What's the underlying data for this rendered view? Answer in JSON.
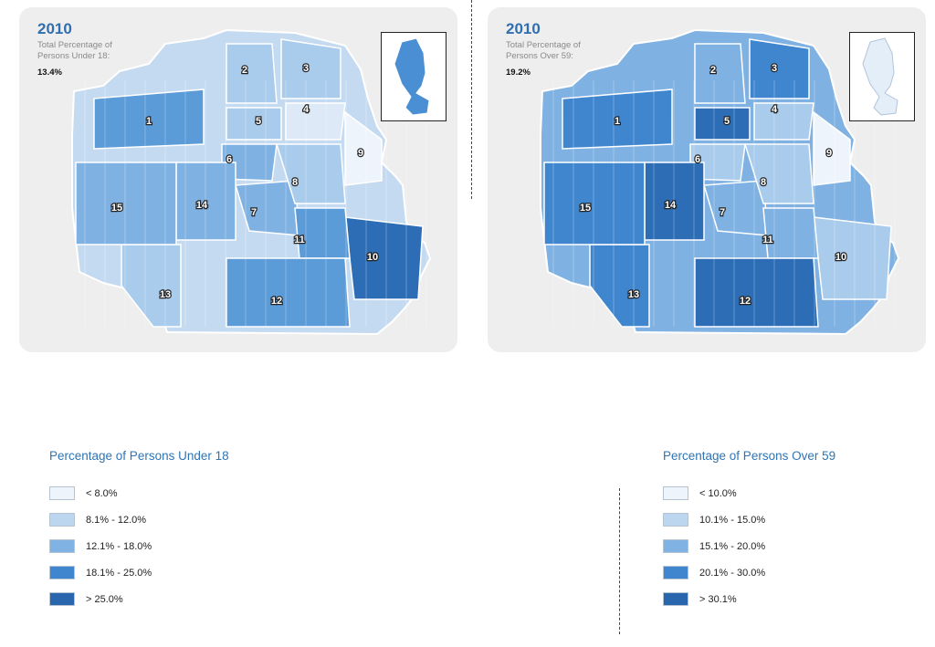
{
  "left_panel": {
    "year": "2010",
    "subtitle_line1": "Total Percentage of",
    "subtitle_line2": "Persons Under 18:",
    "value": "13.4%",
    "district_labels": [
      "1",
      "2",
      "3",
      "4",
      "5",
      "6",
      "7",
      "8",
      "9",
      "10",
      "11",
      "12",
      "13",
      "14",
      "15"
    ],
    "district_shades": [
      "#5a9bd8",
      "#a9cbec",
      "#a9cbec",
      "#dde9f6",
      "#a9cbec",
      "#7fb1e2",
      "#7fb1e2",
      "#a9cbec",
      "#eef4fb",
      "#2c6db5",
      "#5a9bd8",
      "#5a9bd8",
      "#a9cbec",
      "#7fb1e2",
      "#7fb1e2"
    ]
  },
  "right_panel": {
    "year": "2010",
    "subtitle_line1": "Total Percentage of",
    "subtitle_line2": "Persons Over 59:",
    "value": "19.2%",
    "district_labels": [
      "1",
      "2",
      "3",
      "4",
      "5",
      "6",
      "7",
      "8",
      "9",
      "10",
      "11",
      "12",
      "13",
      "14",
      "15"
    ],
    "district_shades": [
      "#3f86cf",
      "#7fb1e2",
      "#3f86cf",
      "#a9cbec",
      "#2c6db5",
      "#a9cbec",
      "#7fb1e2",
      "#a9cbec",
      "#eef4fb",
      "#a9cbec",
      "#7fb1e2",
      "#2c6db5",
      "#3f86cf",
      "#2c6db5",
      "#3f86cf"
    ]
  },
  "legend_under18": {
    "title": "Percentage of Persons Under 18",
    "items": [
      {
        "label": "< 8.0%",
        "color": "#eef4fb"
      },
      {
        "label": "8.1% - 12.0%",
        "color": "#bcd6f0"
      },
      {
        "label": "12.1% - 18.0%",
        "color": "#80b3e3"
      },
      {
        "label": "18.1% - 25.0%",
        "color": "#3f86cf"
      },
      {
        "label": "> 25.0%",
        "color": "#2a66ad"
      }
    ]
  },
  "legend_over59": {
    "title": "Percentage of Persons Over 59",
    "items": [
      {
        "label": "< 10.0%",
        "color": "#eef4fb"
      },
      {
        "label": "10.1% - 15.0%",
        "color": "#bcd6f0"
      },
      {
        "label": "15.1% - 20.0%",
        "color": "#80b3e3"
      },
      {
        "label": "20.1% - 30.0%",
        "color": "#3f86cf"
      },
      {
        "label": "> 30.1%",
        "color": "#2a66ad"
      }
    ]
  }
}
